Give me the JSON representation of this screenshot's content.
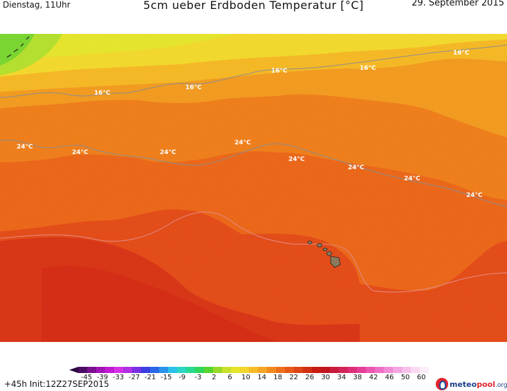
{
  "header": {
    "left": "Dienstag, 11Uhr",
    "title": "5cm ueber Erdboden Temperatur [°C]",
    "right": "29. September 2015"
  },
  "map": {
    "isotherm_labels": [
      "16°C",
      "24°C"
    ],
    "labels": [
      {
        "text": "16°C",
        "kind": "16"
      },
      {
        "text": "16°C",
        "kind": "16"
      },
      {
        "text": "16°C",
        "kind": "16"
      },
      {
        "text": "16°C",
        "kind": "16"
      },
      {
        "text": "16°C",
        "kind": "16"
      },
      {
        "text": "24°C",
        "kind": "24"
      },
      {
        "text": "24°C",
        "kind": "24"
      },
      {
        "text": "24°C",
        "kind": "24"
      },
      {
        "text": "24°C",
        "kind": "24"
      },
      {
        "text": "24°C",
        "kind": "24"
      },
      {
        "text": "24°C",
        "kind": "24"
      },
      {
        "text": "24°C",
        "kind": "24"
      },
      {
        "text": "24°C",
        "kind": "24"
      }
    ]
  },
  "legend": {
    "ticks": [
      "-45",
      "-39",
      "-33",
      "-27",
      "-21",
      "-15",
      "-9",
      "-3",
      "2",
      "6",
      "10",
      "14",
      "18",
      "22",
      "26",
      "30",
      "34",
      "38",
      "42",
      "46",
      "50",
      "60"
    ],
    "colors": [
      "#2b0a3d",
      "#4c0b64",
      "#7a0f8f",
      "#a214b4",
      "#c11ad3",
      "#d430e6",
      "#b12fe5",
      "#7a2fe3",
      "#3b3ee0",
      "#2a66e6",
      "#2a93ec",
      "#2bc1e8",
      "#2ad7c4",
      "#2bd98f",
      "#2fd65a",
      "#56d52f",
      "#97d82a",
      "#c9e02a",
      "#e6e42a",
      "#f3d42c",
      "#f6bb26",
      "#f6a524",
      "#f38a1f",
      "#ee701b",
      "#e75818",
      "#dd4316",
      "#d22e14",
      "#c81c13",
      "#c21520",
      "#c91b3b",
      "#d22458",
      "#dc2f78",
      "#e63d98",
      "#ec57b2",
      "#f06fc6",
      "#f38bd6",
      "#f6a6e1",
      "#f8c0ea",
      "#fadaf2",
      "#fceef8"
    ]
  },
  "footer": {
    "left": "+45h  Init:12Z27SEP2015",
    "logo_main": "meteo",
    "logo_pool": "pool",
    "logo_org": ".org"
  }
}
